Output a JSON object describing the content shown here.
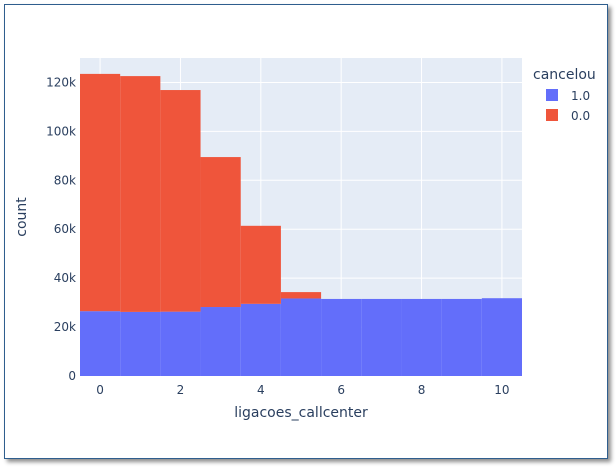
{
  "chart_data": {
    "type": "bar",
    "barmode": "stack",
    "xlabel": "ligacoes_callcenter",
    "ylabel": "count",
    "xlim": [
      -0.5,
      10.5
    ],
    "ylim": [
      0,
      130000
    ],
    "x_ticks": [
      0,
      2,
      4,
      6,
      8,
      10
    ],
    "x_tick_labels": [
      "0",
      "2",
      "4",
      "6",
      "8",
      "10"
    ],
    "y_ticks": [
      0,
      20000,
      40000,
      60000,
      80000,
      100000,
      120000
    ],
    "y_tick_labels": [
      "0",
      "20k",
      "40k",
      "60k",
      "80k",
      "100k",
      "120k"
    ],
    "x": [
      0,
      1,
      2,
      3,
      4,
      5,
      6,
      7,
      8,
      9,
      10
    ],
    "grid": true,
    "legend_position": "top-right",
    "legend_title": "cancelou",
    "series": [
      {
        "name": "1.0",
        "color": "#636efa",
        "values": [
          26500,
          26200,
          26300,
          28200,
          29500,
          31700,
          31500,
          31500,
          31500,
          31500,
          31800
        ]
      },
      {
        "name": "0.0",
        "color": "#ef553b",
        "values": [
          97000,
          96400,
          90600,
          61300,
          31900,
          2600,
          0,
          0,
          0,
          0,
          0
        ]
      }
    ]
  }
}
